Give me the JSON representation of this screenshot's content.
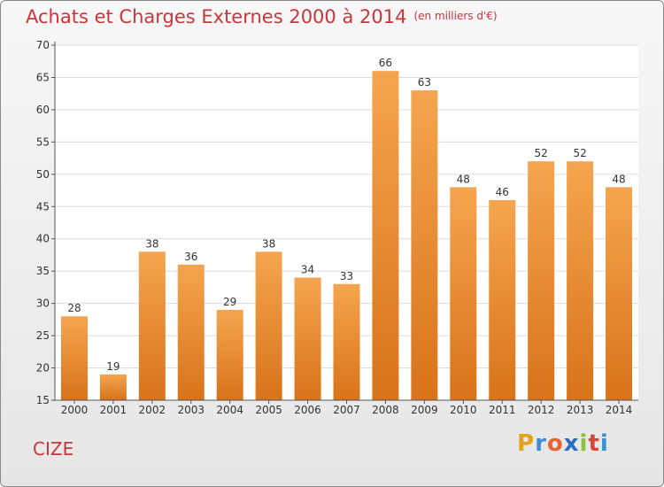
{
  "header": {
    "title": "Achats et Charges Externes 2000 à 2014",
    "subtitle": "(en milliers d'€)"
  },
  "footer": {
    "place": "CIZE",
    "brand": "Proxiti",
    "brand_letters": [
      "P",
      "r",
      "o",
      "x",
      "i",
      "t",
      "i"
    ]
  },
  "colors": {
    "bar_top": "#f5a54f",
    "bar_bottom": "#d8731a",
    "title": "#c8363c",
    "grid": "#dcdcdc",
    "axis": "#555555"
  },
  "chart_data": {
    "type": "bar",
    "categories": [
      "2000",
      "2001",
      "2002",
      "2003",
      "2004",
      "2005",
      "2006",
      "2007",
      "2008",
      "2009",
      "2010",
      "2011",
      "2012",
      "2013",
      "2014"
    ],
    "values": [
      28,
      19,
      38,
      36,
      29,
      38,
      34,
      33,
      66,
      63,
      48,
      46,
      52,
      52,
      48
    ],
    "title": "Achats et Charges Externes 2000 à 2014",
    "subtitle": "(en milliers d'€)",
    "ylim": [
      15,
      70
    ],
    "yticks": [
      15,
      20,
      25,
      30,
      35,
      40,
      45,
      50,
      55,
      60,
      65,
      70
    ],
    "grid": true,
    "data_labels": true
  }
}
